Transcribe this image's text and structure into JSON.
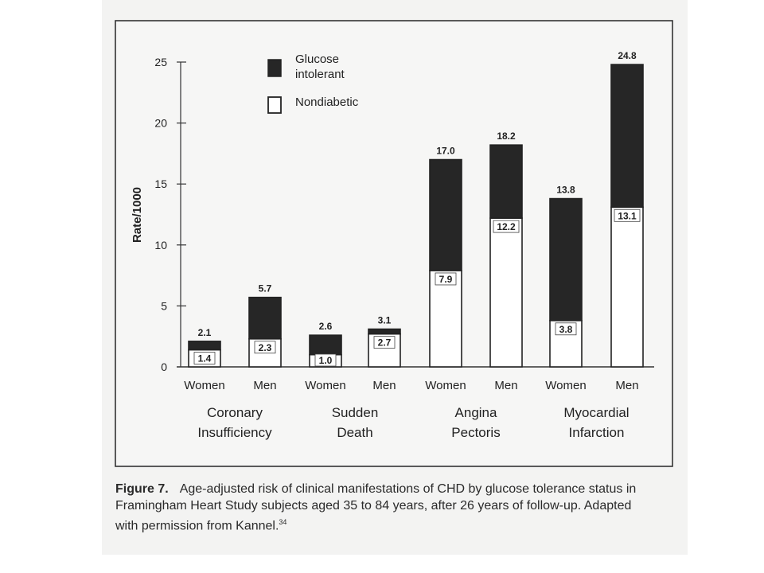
{
  "chart_data": {
    "type": "bar",
    "ylabel": "Rate/1000",
    "ylim": [
      0,
      25
    ],
    "yticks": [
      0,
      5,
      10,
      15,
      20,
      25
    ],
    "groups": [
      "Coronary Insufficiency",
      "Sudden Death",
      "Angina Pectoris",
      "Myocardial Infarction"
    ],
    "group_label_lines": [
      [
        "Coronary",
        "Insufficiency"
      ],
      [
        "Sudden",
        "Death"
      ],
      [
        "Angina",
        "Pectoris"
      ],
      [
        "Myocardial",
        "Infarction"
      ]
    ],
    "categories": [
      "Women",
      "Men",
      "Women",
      "Men",
      "Women",
      "Men",
      "Women",
      "Men"
    ],
    "series": [
      {
        "name": "Nondiabetic",
        "values": [
          1.4,
          2.3,
          1.0,
          2.7,
          7.9,
          12.2,
          3.8,
          13.1
        ]
      },
      {
        "name": "Glucose intolerant",
        "values": [
          2.1,
          5.7,
          2.6,
          3.1,
          17.0,
          18.2,
          13.8,
          24.8
        ]
      }
    ],
    "value_labels_outer": [
      "2.1",
      "5.7",
      "2.6",
      "3.1",
      "17.0",
      "18.2",
      "13.8",
      "24.8"
    ],
    "value_labels_inner": [
      "1.4",
      "2.3",
      "1.0",
      "2.7",
      "7.9",
      "12.2",
      "3.8",
      "13.1"
    ],
    "legend": {
      "position": "top-center",
      "entries": [
        {
          "label_lines": [
            "Glucose",
            "intolerant"
          ],
          "color": "#262626"
        },
        {
          "label_lines": [
            "Nondiabetic"
          ],
          "color": "#ffffff"
        }
      ]
    },
    "grid": false
  },
  "caption": {
    "label": "Figure 7.",
    "text": "Age-adjusted risk of clinical manifestations of CHD by glucose tolerance status in Framingham Heart Study subjects aged 35 to 84 years, after 26 years of follow-up. Adapted with permission from Kannel.",
    "ref": "34"
  }
}
